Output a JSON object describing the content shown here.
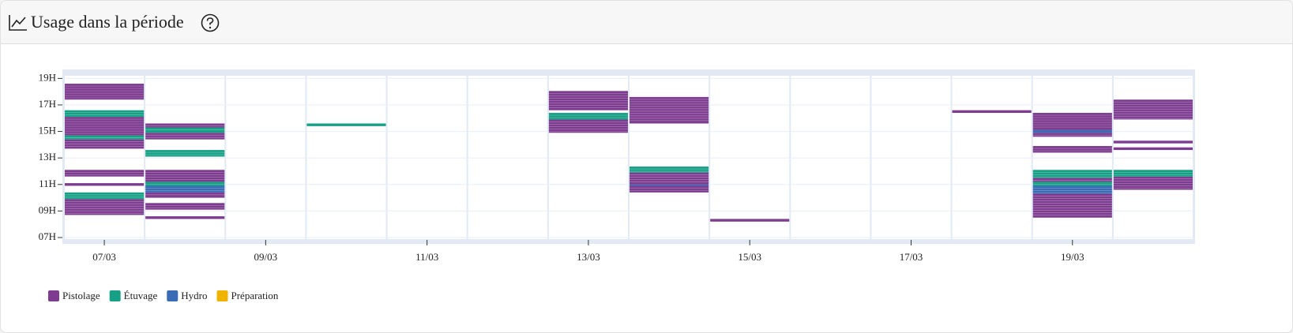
{
  "header": {
    "title": "Usage dans la période"
  },
  "chart_data": {
    "type": "range-bar",
    "categories": [
      "07/03",
      null,
      "09/03",
      null,
      "11/03",
      null,
      "13/03",
      null,
      "15/03",
      null,
      "17/03",
      null,
      "19/03",
      null
    ],
    "ylim": [
      6.88,
      19.2
    ],
    "yticks": [
      {
        "value": 7,
        "label": "07H"
      },
      {
        "value": 9,
        "label": "09H"
      },
      {
        "value": 11,
        "label": "11H"
      },
      {
        "value": 13,
        "label": "13H"
      },
      {
        "value": 15,
        "label": "15H"
      },
      {
        "value": 17,
        "label": "17H"
      },
      {
        "value": 19,
        "label": "19H"
      }
    ],
    "grid": true,
    "series": [
      {
        "name": "Pistolage",
        "color": "#7d3c8f",
        "values": [
          [
            [
              17.4,
              18.6
            ],
            [
              14.7,
              16.1
            ],
            [
              13.7,
              14.4
            ],
            [
              11.6,
              12.1
            ],
            [
              10.9,
              11.1
            ],
            [
              8.7,
              9.9
            ]
          ],
          [
            [
              15.3,
              15.6
            ],
            [
              14.4,
              14.9
            ],
            [
              11.2,
              12.1
            ],
            [
              10.0,
              10.4
            ],
            [
              9.1,
              9.6
            ],
            [
              8.4,
              8.6
            ]
          ],
          [],
          [],
          [],
          [],
          [
            [
              16.6,
              18.05
            ],
            [
              14.9,
              15.9
            ]
          ],
          [
            [
              15.6,
              17.6
            ],
            [
              11.0,
              11.9
            ],
            [
              10.4,
              10.9
            ]
          ],
          [
            [
              8.2,
              8.4
            ]
          ],
          [],
          [],
          [
            [
              16.4,
              16.6
            ]
          ],
          [
            [
              15.1,
              16.4
            ],
            [
              14.6,
              14.9
            ],
            [
              13.4,
              13.9
            ],
            [
              11.2,
              11.5
            ],
            [
              8.5,
              10.3
            ]
          ],
          [
            [
              15.9,
              17.4
            ],
            [
              14.1,
              14.3
            ],
            [
              13.6,
              13.8
            ],
            [
              10.6,
              11.6
            ]
          ]
        ]
      },
      {
        "name": "Étuvage",
        "color": "#16a085",
        "values": [
          [
            [
              16.1,
              16.6
            ],
            [
              14.4,
              14.7
            ],
            [
              9.9,
              10.4
            ]
          ],
          [
            [
              14.9,
              15.3
            ],
            [
              13.1,
              13.6
            ],
            [
              10.9,
              11.2
            ]
          ],
          [],
          [
            [
              15.4,
              15.6
            ]
          ],
          [],
          [],
          [
            [
              15.9,
              16.4
            ]
          ],
          [
            [
              11.9,
              12.35
            ]
          ],
          [],
          [],
          [],
          [],
          [
            [
              11.5,
              12.1
            ],
            [
              10.9,
              11.2
            ]
          ],
          [
            [
              11.6,
              12.1
            ]
          ]
        ]
      },
      {
        "name": "Hydro",
        "color": "#3a6bb5",
        "values": [
          [],
          [
            [
              10.4,
              10.9
            ]
          ],
          [],
          [],
          [],
          [],
          [],
          [
            [
              10.9,
              11.0
            ]
          ],
          [],
          [],
          [],
          [],
          [
            [
              14.9,
              15.1
            ],
            [
              10.3,
              10.9
            ]
          ],
          []
        ]
      },
      {
        "name": "Préparation",
        "color": "#f0b400",
        "values": [
          [],
          [],
          [],
          [],
          [],
          [],
          [],
          [],
          [],
          [],
          [],
          [],
          [],
          []
        ]
      }
    ]
  }
}
